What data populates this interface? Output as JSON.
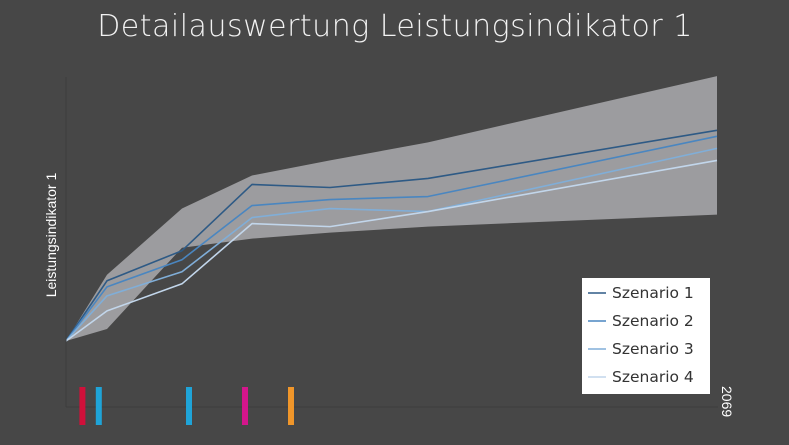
{
  "chart_data": {
    "type": "line",
    "title": "Detailauswertung Leistungsindikator 1",
    "ylabel": "Leistungsindikator 1",
    "xlabel": "",
    "x": [
      0,
      1,
      2,
      3,
      4,
      5,
      6
    ],
    "x_tick_labels": [
      "",
      "",
      "",
      "",
      "",
      "",
      "2069"
    ],
    "ylim": [
      0,
      100
    ],
    "grid": false,
    "legend_position": "bottom-right",
    "band": {
      "upper": [
        0,
        22,
        44,
        55,
        60,
        66,
        88
      ],
      "lower": [
        0,
        4,
        31,
        34,
        36,
        38,
        42
      ],
      "color": "#9c9c9f"
    },
    "series": [
      {
        "name": "Szenario 1",
        "color": "#2e5a85",
        "values": [
          0,
          20,
          30,
          52,
          51,
          54,
          70
        ]
      },
      {
        "name": "Szenario 2",
        "color": "#4a86c0",
        "values": [
          0,
          18,
          27,
          45,
          47,
          48,
          68
        ]
      },
      {
        "name": "Szenario 3",
        "color": "#80aed8",
        "values": [
          0,
          15,
          23,
          41,
          44,
          43,
          64
        ]
      },
      {
        "name": "Szenario 4",
        "color": "#c2d6eb",
        "values": [
          0,
          10,
          19,
          39,
          38,
          43,
          60
        ]
      }
    ],
    "markers": [
      {
        "x": 0.4,
        "color": "#d0103a"
      },
      {
        "x": 0.8,
        "color": "#1fa4d8"
      },
      {
        "x": 2.1,
        "color": "#1fa4d8"
      },
      {
        "x": 2.9,
        "color": "#d4168c"
      },
      {
        "x": 3.5,
        "color": "#f0962a"
      }
    ]
  }
}
